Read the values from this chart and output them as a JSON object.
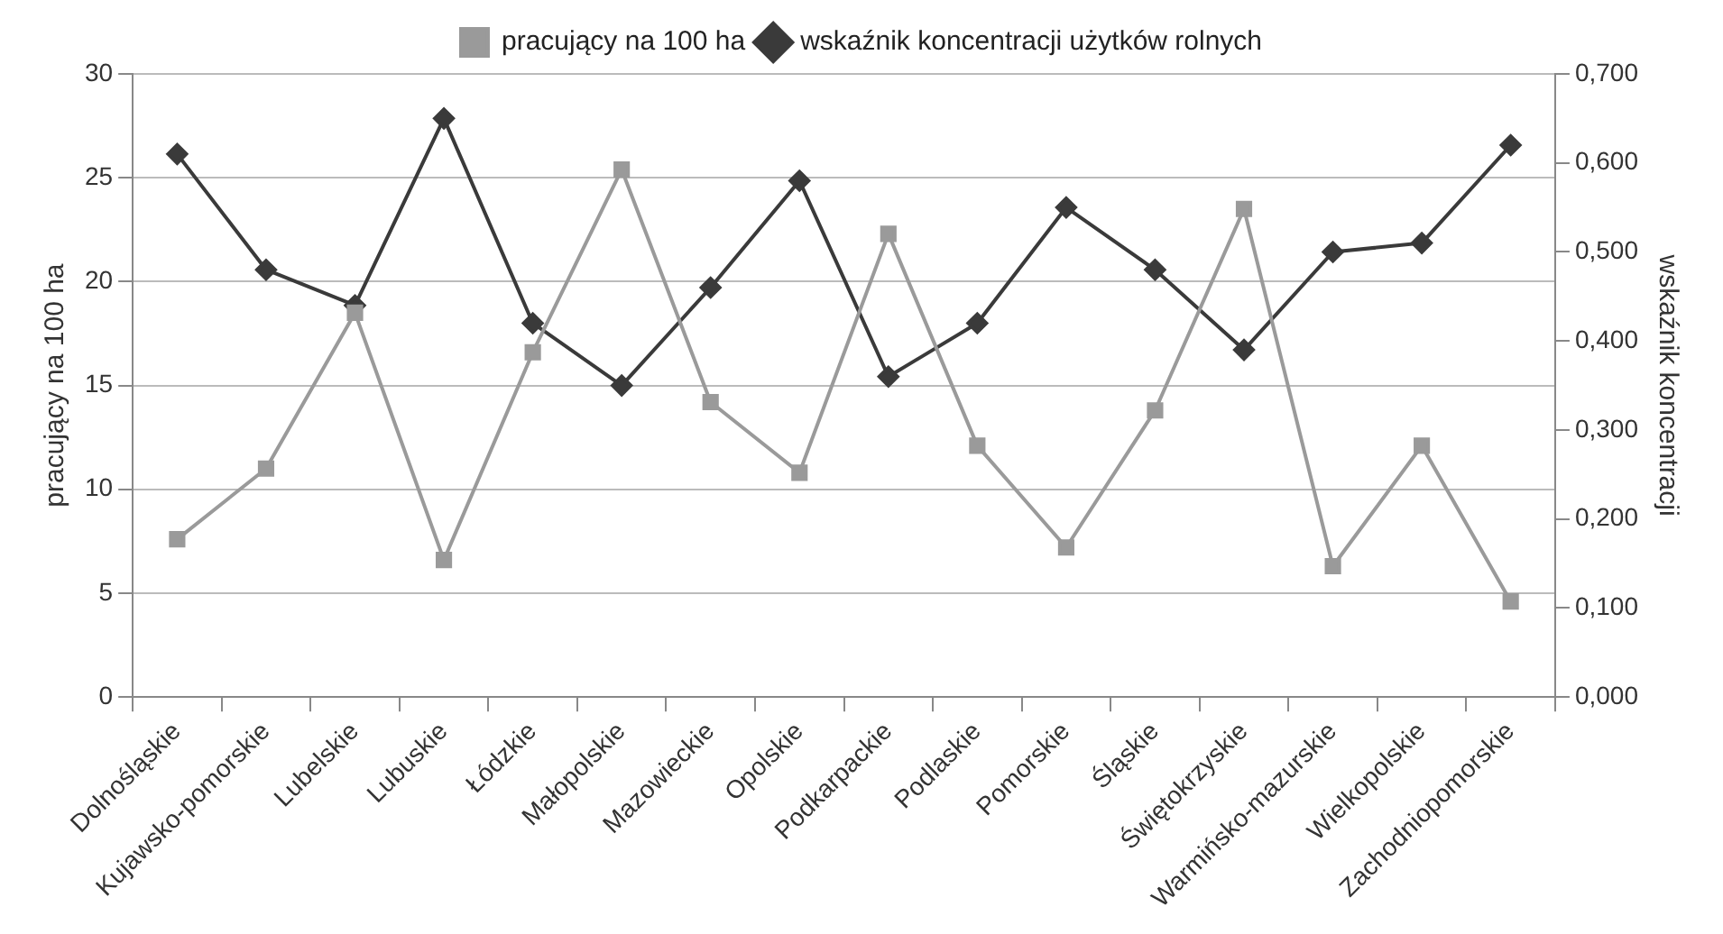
{
  "chart_data": {
    "type": "line",
    "categories": [
      "Dolnośląskie",
      "Kujawsko-pomorskie",
      "Lubelskie",
      "Lubuskie",
      "Łódzkie",
      "Małopolskie",
      "Mazowieckie",
      "Opolskie",
      "Podkarpackie",
      "Podlaskie",
      "Pomorskie",
      "Śląskie",
      "Świętokrzyskie",
      "Warmińsko-mazurskie",
      "Wielkopolskie",
      "Zachodniopomorskie"
    ],
    "series": [
      {
        "name": "pracujący na 100 ha",
        "color": "#9a9a9a",
        "marker": "square",
        "values": [
          7.6,
          11,
          18.5,
          6.6,
          16.6,
          25.4,
          14.2,
          10.8,
          22.3,
          12.1,
          7.2,
          13.8,
          23.5,
          6.3,
          12.1,
          4.6
        ]
      },
      {
        "name": "wskaźnik koncentracji użytków rolnych",
        "color": "#3a3a3a",
        "marker": "diamond",
        "axis": "y2",
        "values": [
          0.61,
          0.48,
          0.44,
          0.65,
          0.42,
          0.35,
          0.46,
          0.58,
          0.36,
          0.42,
          0.55,
          0.48,
          0.39,
          0.5,
          0.51,
          0.62
        ]
      }
    ],
    "ylabel": "pracujący na 100 ha",
    "y2label": "wskaźnik koncentracji",
    "ylim": [
      0,
      30
    ],
    "yticks": [
      0,
      5,
      10,
      15,
      20,
      25,
      30
    ],
    "y2lim": [
      0,
      0.7
    ],
    "y2ticks": [
      {
        "value": 0,
        "label": "0,000"
      },
      {
        "value": 0.1,
        "label": "0,100"
      },
      {
        "value": 0.2,
        "label": "0,200"
      },
      {
        "value": 0.3,
        "label": "0,300"
      },
      {
        "value": 0.4,
        "label": "0,400"
      },
      {
        "value": 0.5,
        "label": "0,500"
      },
      {
        "value": 0.6,
        "label": "0,600"
      },
      {
        "value": 0.7,
        "label": "0,700"
      }
    ],
    "grid": "y",
    "legend": "top",
    "line_style": "solid"
  }
}
